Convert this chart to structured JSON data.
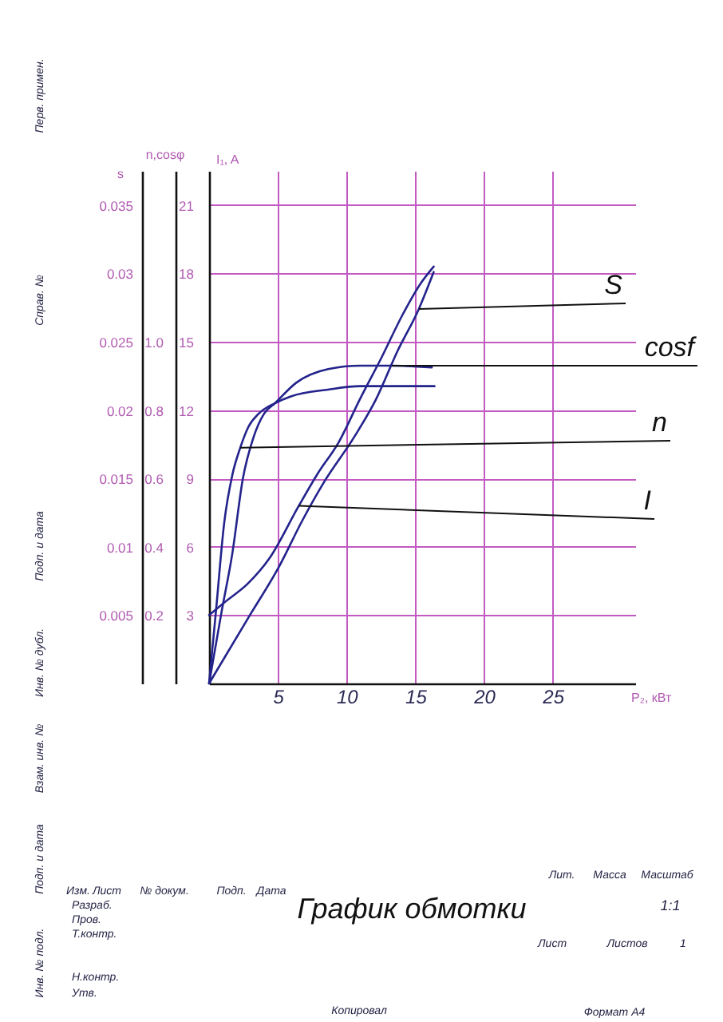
{
  "chart_data": {
    "type": "line",
    "title": "График обмотки",
    "xlabel": "P₂, кВт",
    "ylabel": "I₁, A",
    "y2label": "n,cosφ",
    "y3label": "s",
    "xlim": [
      0,
      31
    ],
    "xticks": [
      5,
      10,
      15,
      20,
      25
    ],
    "ylim": [
      0,
      22.5
    ],
    "yticks": [
      3,
      6,
      9,
      12,
      15,
      18,
      21
    ],
    "y2lim": [
      0,
      1.5
    ],
    "y2ticks": [
      0.2,
      0.4,
      0.6,
      0.8,
      {
        "value": 1,
        "label": "1.0"
      }
    ],
    "y3lim": [
      0,
      0.0375
    ],
    "y3ticks": [
      0.005,
      0.01,
      0.015,
      0.02,
      0.025,
      0.03,
      0.035
    ],
    "grid": true,
    "series": [
      {
        "name": "S",
        "axis": "y3",
        "color": "#23238c",
        "x": [
          0,
          2.85,
          5.17,
          6.72,
          8.28,
          10.6,
          12.15,
          13.7,
          15.26,
          16.34
        ],
        "values": [
          0,
          0.0048,
          0.0087,
          0.0118,
          0.0146,
          0.0181,
          0.0208,
          0.0243,
          0.0274,
          0.0301
        ]
      },
      {
        "name": "cosf",
        "axis": "y2",
        "color": "#23238c",
        "x": [
          0,
          0.91,
          1.69,
          2.46,
          3.23,
          4.01,
          4.79,
          6.34,
          8.66,
          10.99,
          13.3,
          16.2
        ],
        "values": [
          0,
          0.21,
          0.38,
          0.6,
          0.72,
          0.79,
          0.82,
          0.88,
          0.92,
          0.93,
          0.93,
          0.925
        ]
      },
      {
        "name": "n",
        "axis": "y2",
        "color": "#23238c",
        "x": [
          0,
          0.52,
          1.1,
          1.69,
          2.27,
          2.85,
          3.62,
          4.79,
          5.95,
          8.66,
          10.99,
          16.4
        ],
        "values": [
          0,
          0.22,
          0.47,
          0.61,
          0.69,
          0.75,
          0.79,
          0.82,
          0.84,
          0.86,
          0.87,
          0.87
        ]
      },
      {
        "name": "I",
        "color": "#23238c",
        "x": [
          0,
          1.1,
          2.85,
          4.4,
          6.53,
          7.89,
          9.44,
          10.99,
          12.54,
          14.09,
          15.44,
          16.34
        ],
        "values": [
          3,
          3.55,
          4.4,
          5.5,
          7.8,
          9.2,
          10.6,
          12.5,
          14.3,
          16.2,
          17.6,
          18.3
        ]
      }
    ],
    "annotations": [
      "Перв. примен.",
      "Справ. №",
      "Подп. и дата",
      "Инв. № дубл.",
      "Взам. инв. №",
      "Подп. и дата",
      "Инв. № подл.",
      "Изм.",
      "Лист",
      "№ докум.",
      "Подп.",
      "Дата",
      "Разраб.",
      "Пров.",
      "Т.контр.",
      "Н.контр.",
      "Утв.",
      "Лит.",
      "Масса",
      "Масштаб",
      "1:1",
      "Лист",
      "Листов",
      "1",
      "Копировал",
      "Формат А4"
    ]
  }
}
